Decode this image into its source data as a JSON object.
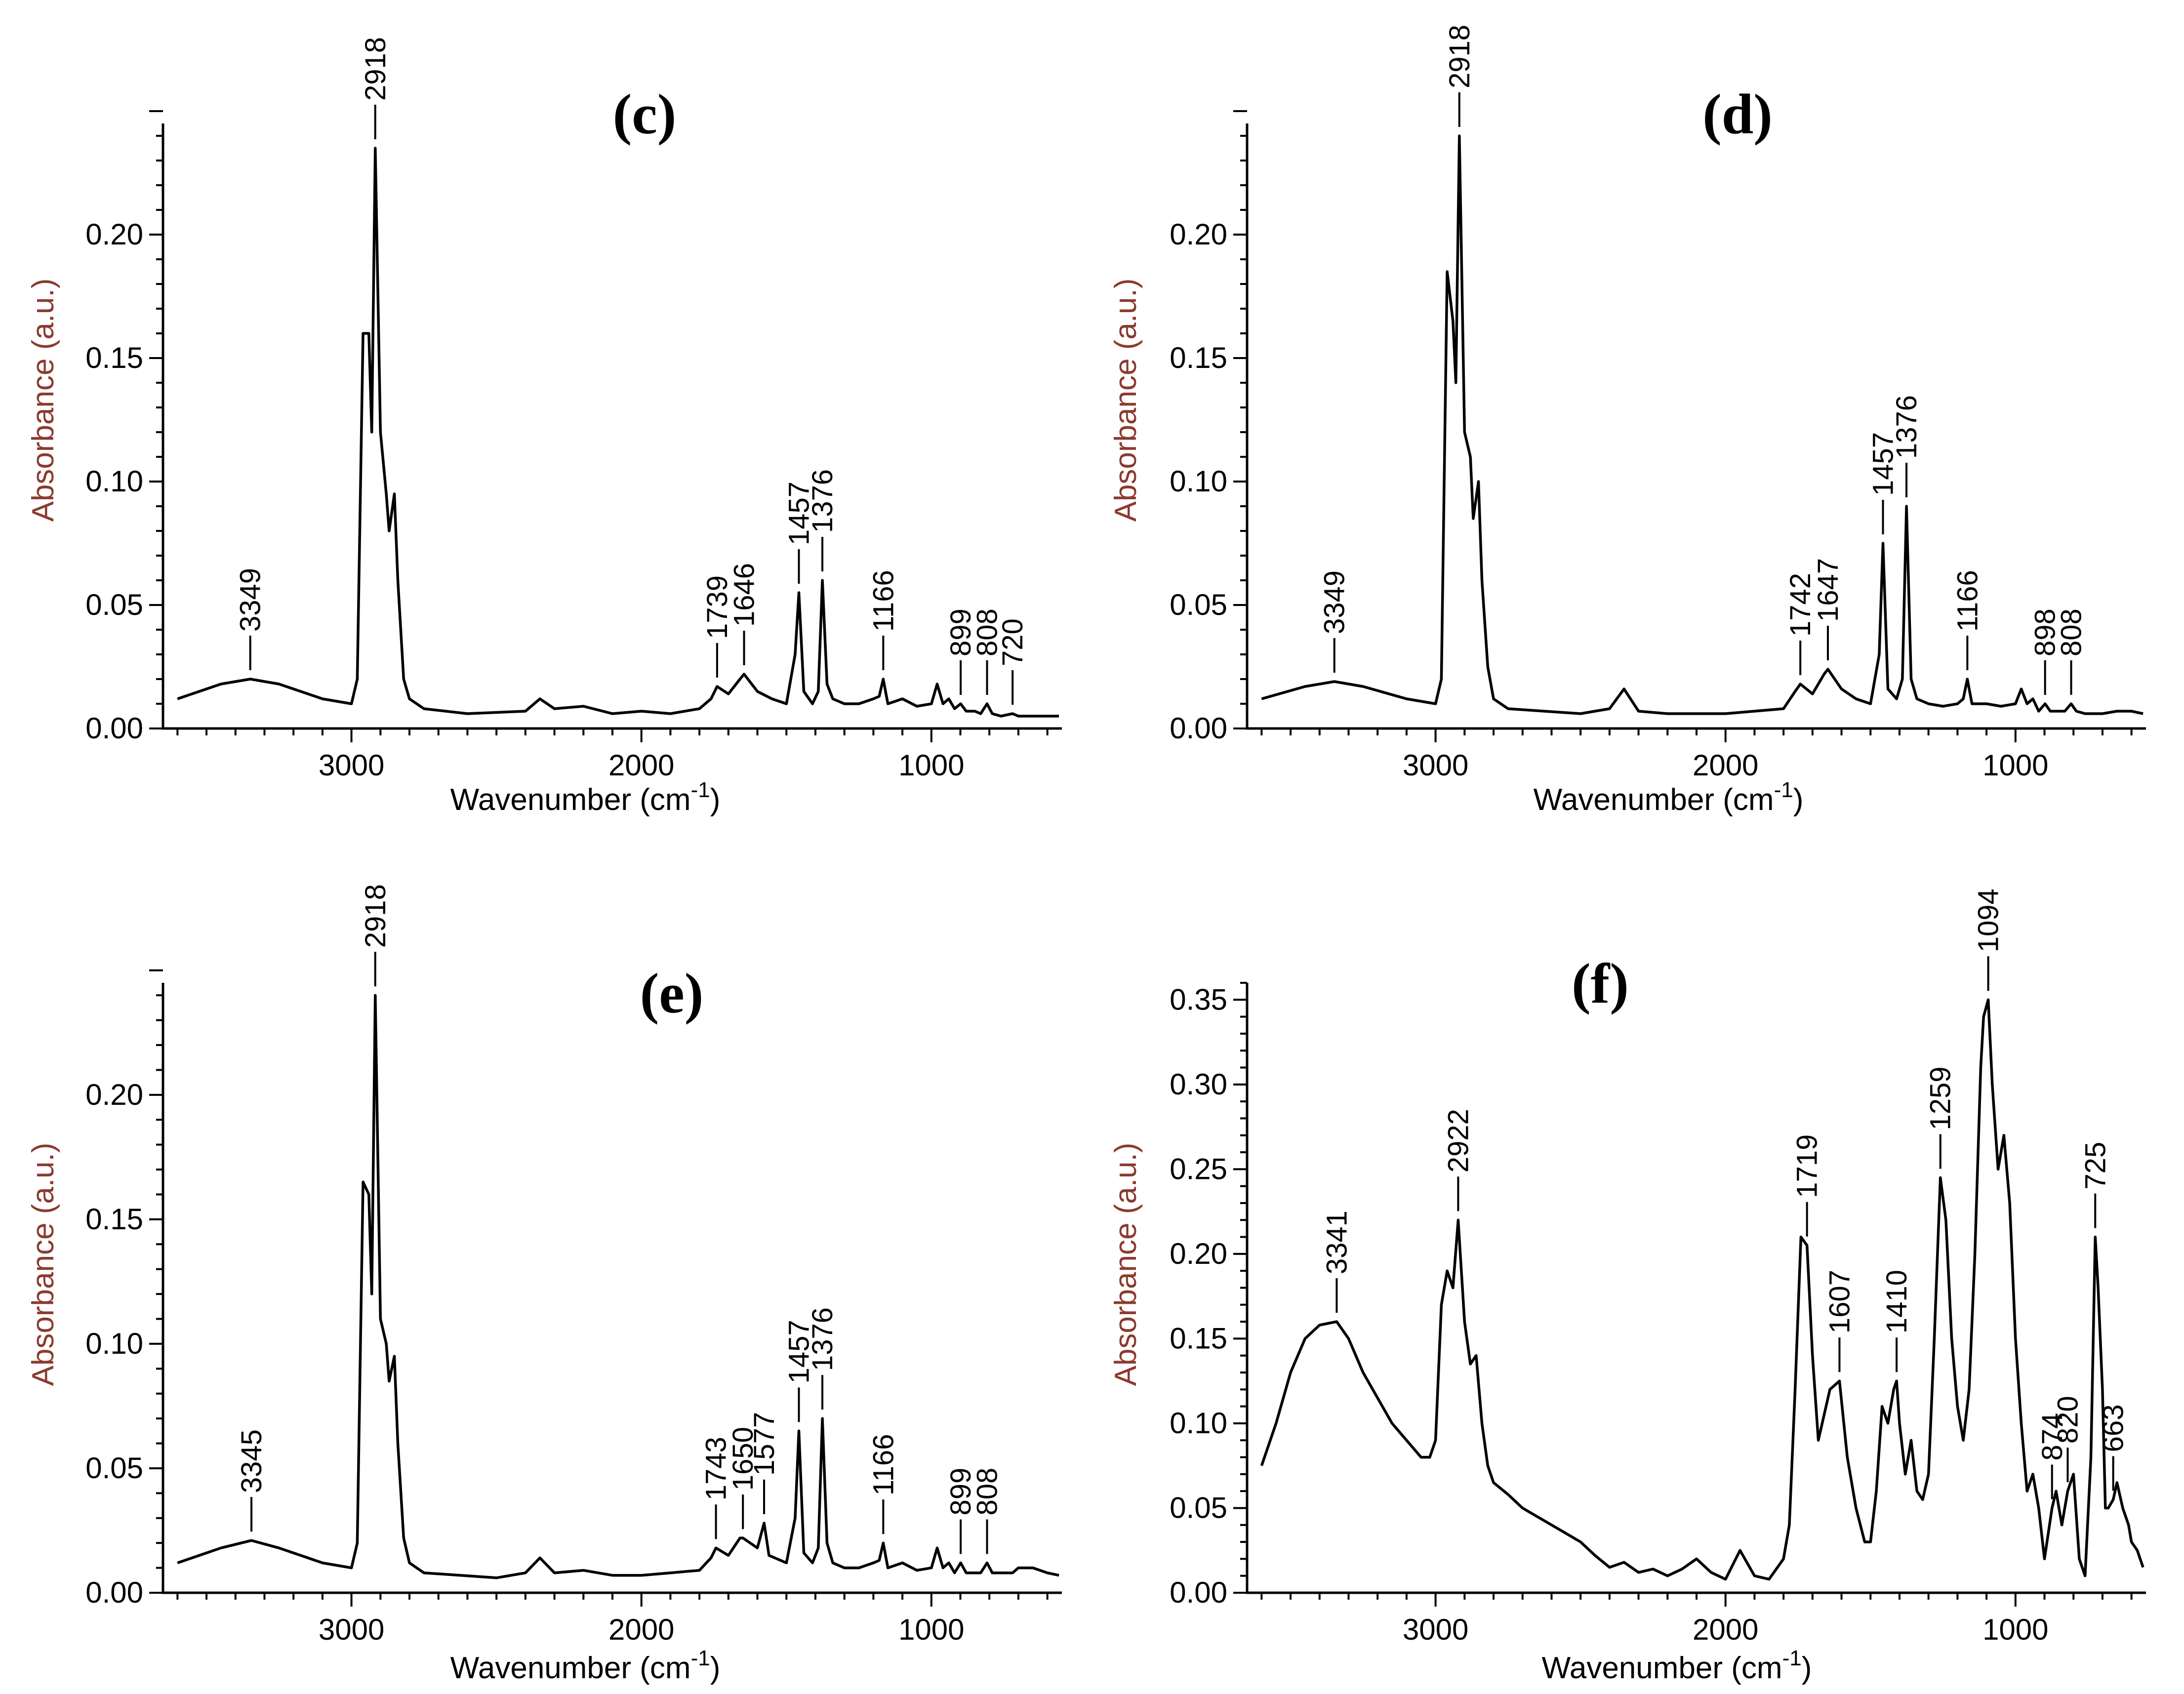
{
  "chart_data": [
    {
      "id": "c",
      "type": "line",
      "title": "(c)",
      "xlabel": "Wavenumber (cm-1)",
      "ylabel": "Absorbance (a.u.)",
      "xlim": [
        3650,
        550
      ],
      "ylim": [
        0,
        0.245
      ],
      "xticks": [
        3000,
        2000,
        1000
      ],
      "yticks": [
        0.0,
        0.05,
        0.1,
        0.15,
        0.2
      ],
      "ytick_labels": [
        "0.00",
        "0.05",
        "0.10",
        "0.15",
        "0.20"
      ],
      "series": [
        {
          "name": "spectrum (c)",
          "x": [
            3600,
            3450,
            3349,
            3250,
            3100,
            3000,
            2980,
            2960,
            2940,
            2930,
            2918,
            2900,
            2880,
            2870,
            2852,
            2840,
            2820,
            2800,
            2750,
            2600,
            2400,
            2350,
            2300,
            2200,
            2100,
            2000,
            1900,
            1800,
            1760,
            1739,
            1700,
            1660,
            1646,
            1600,
            1550,
            1500,
            1470,
            1457,
            1440,
            1410,
            1390,
            1376,
            1360,
            1340,
            1300,
            1250,
            1200,
            1180,
            1166,
            1150,
            1100,
            1050,
            1000,
            980,
            960,
            940,
            920,
            899,
            880,
            850,
            830,
            808,
            790,
            760,
            720,
            700,
            650,
            600,
            560
          ],
          "y": [
            0.012,
            0.018,
            0.02,
            0.018,
            0.012,
            0.01,
            0.02,
            0.16,
            0.16,
            0.12,
            0.235,
            0.12,
            0.095,
            0.08,
            0.095,
            0.06,
            0.02,
            0.012,
            0.008,
            0.006,
            0.007,
            0.012,
            0.008,
            0.009,
            0.006,
            0.007,
            0.006,
            0.008,
            0.012,
            0.017,
            0.014,
            0.02,
            0.022,
            0.015,
            0.012,
            0.01,
            0.03,
            0.055,
            0.015,
            0.01,
            0.015,
            0.06,
            0.018,
            0.012,
            0.01,
            0.01,
            0.012,
            0.013,
            0.02,
            0.01,
            0.012,
            0.009,
            0.01,
            0.018,
            0.01,
            0.012,
            0.008,
            0.01,
            0.007,
            0.007,
            0.006,
            0.01,
            0.006,
            0.005,
            0.006,
            0.005,
            0.005,
            0.005,
            0.005
          ]
        }
      ],
      "annotations": [
        "3349",
        "2918",
        "1739",
        "1646",
        "1457",
        "1376",
        "1166",
        "899",
        "808",
        "720"
      ]
    },
    {
      "id": "d",
      "type": "line",
      "title": "(d)",
      "xlabel": "Wavenumber (cm-1)",
      "ylabel": "Absorbance (a.u.)",
      "xlim": [
        3650,
        550
      ],
      "ylim": [
        0,
        0.245
      ],
      "xticks": [
        3000,
        2000,
        1000
      ],
      "yticks": [
        0.0,
        0.05,
        0.1,
        0.15,
        0.2
      ],
      "ytick_labels": [
        "0.00",
        "0.05",
        "0.10",
        "0.15",
        "0.20"
      ],
      "series": [
        {
          "name": "spectrum (d)",
          "x": [
            3600,
            3450,
            3349,
            3250,
            3100,
            3000,
            2980,
            2960,
            2940,
            2930,
            2918,
            2900,
            2880,
            2870,
            2852,
            2840,
            2820,
            2800,
            2750,
            2500,
            2400,
            2350,
            2300,
            2200,
            2100,
            2000,
            1900,
            1800,
            1760,
            1742,
            1700,
            1660,
            1647,
            1600,
            1550,
            1500,
            1470,
            1457,
            1440,
            1410,
            1390,
            1376,
            1360,
            1340,
            1300,
            1250,
            1200,
            1180,
            1166,
            1150,
            1100,
            1050,
            1000,
            980,
            960,
            940,
            920,
            898,
            880,
            850,
            830,
            808,
            790,
            760,
            720,
            700,
            650,
            600,
            560
          ],
          "y": [
            0.012,
            0.017,
            0.019,
            0.017,
            0.012,
            0.01,
            0.02,
            0.185,
            0.165,
            0.14,
            0.24,
            0.12,
            0.11,
            0.085,
            0.1,
            0.06,
            0.025,
            0.012,
            0.008,
            0.006,
            0.008,
            0.016,
            0.007,
            0.006,
            0.006,
            0.006,
            0.007,
            0.008,
            0.015,
            0.018,
            0.014,
            0.022,
            0.024,
            0.016,
            0.012,
            0.01,
            0.03,
            0.075,
            0.016,
            0.012,
            0.02,
            0.09,
            0.02,
            0.012,
            0.01,
            0.009,
            0.01,
            0.012,
            0.02,
            0.01,
            0.01,
            0.009,
            0.01,
            0.016,
            0.01,
            0.012,
            0.007,
            0.01,
            0.007,
            0.007,
            0.007,
            0.01,
            0.007,
            0.006,
            0.006,
            0.006,
            0.007,
            0.007,
            0.006
          ]
        }
      ],
      "annotations": [
        "3349",
        "2918",
        "1742",
        "1647",
        "1457",
        "1376",
        "1166",
        "898",
        "808"
      ]
    },
    {
      "id": "e",
      "type": "line",
      "title": "(e)",
      "xlabel": "Wavenumber (cm-1)",
      "ylabel": "Absorbance (a.u.)",
      "xlim": [
        3650,
        550
      ],
      "ylim": [
        0,
        0.245
      ],
      "xticks": [
        3000,
        2000,
        1000
      ],
      "yticks": [
        0.0,
        0.05,
        0.1,
        0.15,
        0.2
      ],
      "ytick_labels": [
        "0.00",
        "0.05",
        "0.10",
        "0.15",
        "0.20"
      ],
      "series": [
        {
          "name": "spectrum (e)",
          "x": [
            3600,
            3450,
            3345,
            3250,
            3100,
            3000,
            2980,
            2960,
            2940,
            2930,
            2918,
            2900,
            2880,
            2870,
            2852,
            2840,
            2820,
            2800,
            2750,
            2500,
            2400,
            2350,
            2300,
            2200,
            2100,
            2000,
            1900,
            1800,
            1760,
            1743,
            1700,
            1660,
            1650,
            1600,
            1577,
            1560,
            1500,
            1470,
            1457,
            1440,
            1410,
            1390,
            1376,
            1360,
            1340,
            1300,
            1250,
            1200,
            1180,
            1166,
            1150,
            1100,
            1050,
            1000,
            980,
            960,
            940,
            920,
            899,
            880,
            850,
            830,
            808,
            790,
            760,
            720,
            700,
            650,
            600,
            560
          ],
          "y": [
            0.012,
            0.018,
            0.021,
            0.018,
            0.012,
            0.01,
            0.02,
            0.165,
            0.16,
            0.12,
            0.24,
            0.11,
            0.1,
            0.085,
            0.095,
            0.06,
            0.022,
            0.012,
            0.008,
            0.006,
            0.008,
            0.014,
            0.008,
            0.009,
            0.007,
            0.007,
            0.008,
            0.009,
            0.014,
            0.018,
            0.015,
            0.022,
            0.022,
            0.018,
            0.028,
            0.015,
            0.012,
            0.03,
            0.065,
            0.016,
            0.012,
            0.018,
            0.07,
            0.02,
            0.012,
            0.01,
            0.01,
            0.012,
            0.013,
            0.02,
            0.01,
            0.012,
            0.009,
            0.01,
            0.018,
            0.01,
            0.012,
            0.008,
            0.012,
            0.008,
            0.008,
            0.008,
            0.012,
            0.008,
            0.008,
            0.008,
            0.01,
            0.01,
            0.008,
            0.007
          ]
        }
      ],
      "annotations": [
        "3345",
        "2918",
        "1743",
        "1650",
        "1577",
        "1457",
        "1376",
        "1166",
        "899",
        "808"
      ]
    },
    {
      "id": "f",
      "type": "line",
      "title": "(f)",
      "xlabel": "Wavenumber (cm-1)",
      "ylabel": "Absorbance (a.u.)",
      "xlim": [
        3650,
        550
      ],
      "ylim": [
        0,
        0.36
      ],
      "xticks": [
        3000,
        2000,
        1000
      ],
      "yticks": [
        0.0,
        0.05,
        0.1,
        0.15,
        0.2,
        0.25,
        0.3,
        0.35
      ],
      "ytick_labels": [
        "0.00",
        "0.05",
        "0.10",
        "0.15",
        "0.20",
        "0.25",
        "0.30",
        "0.35"
      ],
      "series": [
        {
          "name": "spectrum (f)",
          "x": [
            3600,
            3550,
            3500,
            3450,
            3400,
            3341,
            3300,
            3250,
            3200,
            3150,
            3100,
            3050,
            3020,
            3000,
            2980,
            2960,
            2940,
            2922,
            2900,
            2880,
            2860,
            2840,
            2820,
            2800,
            2750,
            2700,
            2650,
            2600,
            2550,
            2500,
            2450,
            2400,
            2350,
            2300,
            2250,
            2200,
            2150,
            2100,
            2050,
            2000,
            1950,
            1900,
            1850,
            1800,
            1780,
            1760,
            1740,
            1719,
            1700,
            1680,
            1640,
            1607,
            1580,
            1550,
            1520,
            1500,
            1480,
            1460,
            1440,
            1420,
            1410,
            1400,
            1380,
            1360,
            1340,
            1320,
            1300,
            1280,
            1259,
            1240,
            1220,
            1200,
            1180,
            1160,
            1140,
            1120,
            1110,
            1094,
            1080,
            1060,
            1040,
            1020,
            1000,
            980,
            960,
            940,
            920,
            900,
            874,
            860,
            840,
            820,
            800,
            780,
            760,
            740,
            725,
            715,
            700,
            690,
            680,
            663,
            650,
            630,
            610,
            600,
            580,
            560
          ],
          "y": [
            0.075,
            0.1,
            0.13,
            0.15,
            0.158,
            0.16,
            0.15,
            0.13,
            0.115,
            0.1,
            0.09,
            0.08,
            0.08,
            0.09,
            0.17,
            0.19,
            0.18,
            0.22,
            0.16,
            0.135,
            0.14,
            0.1,
            0.075,
            0.065,
            0.058,
            0.05,
            0.045,
            0.04,
            0.035,
            0.03,
            0.022,
            0.015,
            0.018,
            0.012,
            0.014,
            0.01,
            0.014,
            0.02,
            0.012,
            0.008,
            0.025,
            0.01,
            0.008,
            0.02,
            0.04,
            0.12,
            0.21,
            0.205,
            0.14,
            0.09,
            0.12,
            0.125,
            0.08,
            0.05,
            0.03,
            0.03,
            0.06,
            0.11,
            0.1,
            0.12,
            0.125,
            0.1,
            0.07,
            0.09,
            0.06,
            0.055,
            0.07,
            0.15,
            0.245,
            0.22,
            0.15,
            0.11,
            0.09,
            0.12,
            0.2,
            0.31,
            0.34,
            0.35,
            0.3,
            0.25,
            0.27,
            0.23,
            0.15,
            0.1,
            0.06,
            0.07,
            0.05,
            0.02,
            0.05,
            0.06,
            0.04,
            0.06,
            0.07,
            0.02,
            0.01,
            0.08,
            0.21,
            0.18,
            0.12,
            0.05,
            0.05,
            0.055,
            0.065,
            0.05,
            0.04,
            0.03,
            0.025,
            0.015
          ]
        }
      ],
      "annotations": [
        "3341",
        "2922",
        "1719",
        "1607",
        "1410",
        "1259",
        "1094",
        "725",
        "874",
        "820",
        "663"
      ]
    }
  ],
  "superscript": "-1"
}
